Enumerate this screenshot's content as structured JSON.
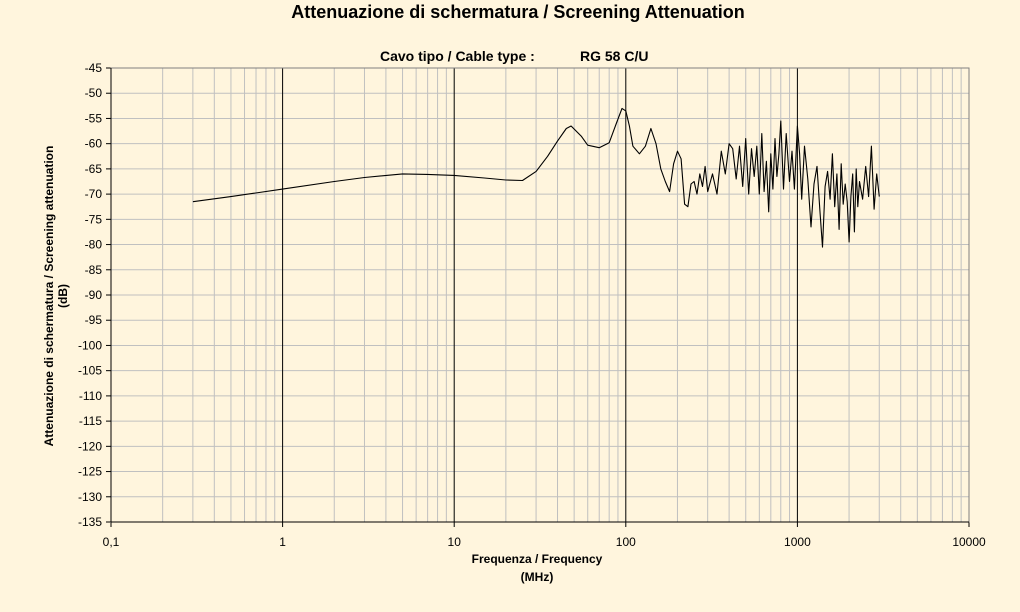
{
  "chart_data": {
    "type": "line",
    "title": "Attenuazione di schermatura / Screening Attenuation",
    "subtitle_label": "Cavo tipo / Cable type :",
    "subtitle_value": "RG 58 C/U",
    "xlabel_line1": "Frequenza / Frequency",
    "xlabel_line2": "(MHz)",
    "ylabel_line1": "Attenuazione di schermatura / Screening attenuation",
    "ylabel_line2": "(dB)",
    "x_scale": "log",
    "xlim": [
      0.1,
      10000
    ],
    "ylim": [
      -135,
      -45
    ],
    "y_step": 5,
    "x_tick_labels": [
      "0,1",
      "1",
      "10",
      "100",
      "1000",
      "10000"
    ],
    "grid": true,
    "series_color": "#000000",
    "series": [
      {
        "x": [
          0.3,
          0.5,
          1,
          2,
          3,
          5,
          7,
          10,
          15,
          20,
          25,
          30,
          35,
          40,
          45,
          48,
          55,
          60,
          70,
          80,
          88,
          95,
          100,
          105,
          110,
          120,
          130,
          140,
          150,
          160,
          170,
          180,
          190,
          200,
          210,
          220,
          230,
          240,
          250,
          260,
          270,
          280,
          290,
          300,
          320,
          340,
          360,
          380,
          400,
          420,
          440,
          460,
          480,
          500,
          520,
          540,
          560,
          580,
          600,
          620,
          640,
          660,
          680,
          700,
          720,
          740,
          760,
          780,
          800,
          830,
          860,
          900,
          930,
          960,
          1000,
          1030,
          1060,
          1100,
          1150,
          1200,
          1250,
          1300,
          1350,
          1400,
          1450,
          1500,
          1550,
          1600,
          1650,
          1700,
          1750,
          1800,
          1850,
          1900,
          1950,
          2000,
          2050,
          2100,
          2150,
          2200,
          2250,
          2300,
          2400,
          2500,
          2600,
          2700,
          2800,
          2900,
          3000
        ],
        "y": [
          -71.5,
          -70.5,
          -69.0,
          -67.5,
          -66.7,
          -66.0,
          -66.1,
          -66.3,
          -66.8,
          -67.2,
          -67.3,
          -65.5,
          -62.5,
          -59.5,
          -57.0,
          -56.5,
          -58.5,
          -60.3,
          -60.8,
          -59.8,
          -56.0,
          -53.0,
          -53.5,
          -56.5,
          -60.5,
          -62.0,
          -60.5,
          -57.0,
          -60.0,
          -65.0,
          -67.5,
          -69.5,
          -64.0,
          -61.5,
          -63.0,
          -72.0,
          -72.5,
          -68.0,
          -67.5,
          -70.0,
          -66.0,
          -68.5,
          -64.5,
          -69.5,
          -66.0,
          -70.0,
          -61.5,
          -66.0,
          -60.0,
          -61.0,
          -67.0,
          -60.5,
          -68.5,
          -59.0,
          -70.0,
          -61.0,
          -66.5,
          -60.5,
          -70.0,
          -58.0,
          -69.5,
          -63.5,
          -73.5,
          -62.0,
          -69.0,
          -59.0,
          -66.5,
          -62.0,
          -55.5,
          -69.0,
          -58.0,
          -67.5,
          -61.5,
          -69.0,
          -56.5,
          -62.0,
          -71.0,
          -60.5,
          -67.0,
          -76.5,
          -68.0,
          -64.5,
          -73.0,
          -80.5,
          -68.5,
          -65.5,
          -71.0,
          -62.0,
          -72.5,
          -66.0,
          -77.0,
          -64.0,
          -72.0,
          -68.0,
          -71.5,
          -79.5,
          -70.5,
          -66.0,
          -77.5,
          -65.0,
          -72.5,
          -67.5,
          -71.0,
          -64.5,
          -70.5,
          -60.5,
          -73.0,
          -66.0,
          -70.5
        ]
      }
    ]
  }
}
